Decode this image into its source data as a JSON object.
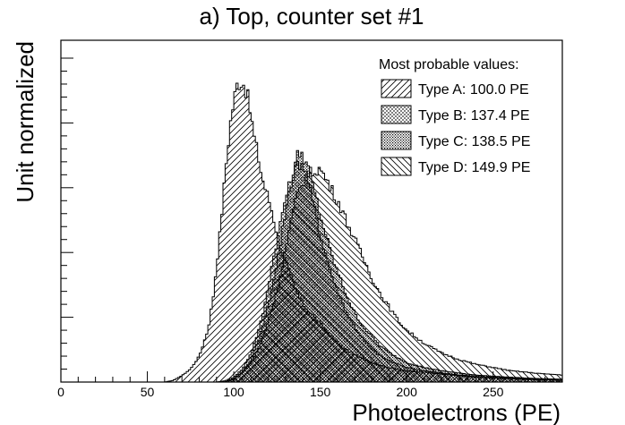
{
  "chart_data": {
    "type": "area",
    "title": "a) Top, counter set #1",
    "xlabel": "Photoelectrons (PE)",
    "ylabel": "Unit normalized",
    "xlim": [
      0,
      290
    ],
    "ylim": [
      0,
      1.0
    ],
    "x_ticks": [
      0,
      50,
      100,
      150,
      200,
      250
    ],
    "grid": false,
    "legend_placement": "top-right",
    "legend_title": "Most probable values:",
    "series": [
      {
        "name": "Type A: 100.0 PE",
        "hatch": "diagonal-right",
        "points": [
          [
            0,
            0
          ],
          [
            60,
            0
          ],
          [
            65,
            0.005
          ],
          [
            70,
            0.02
          ],
          [
            75,
            0.04
          ],
          [
            80,
            0.08
          ],
          [
            85,
            0.16
          ],
          [
            88,
            0.26
          ],
          [
            90,
            0.36
          ],
          [
            92,
            0.46
          ],
          [
            94,
            0.58
          ],
          [
            96,
            0.7
          ],
          [
            98,
            0.8
          ],
          [
            100,
            0.87
          ],
          [
            102,
            0.92
          ],
          [
            104,
            0.93
          ],
          [
            106,
            0.92
          ],
          [
            108,
            0.88
          ],
          [
            110,
            0.82
          ],
          [
            112,
            0.75
          ],
          [
            114,
            0.7
          ],
          [
            116,
            0.64
          ],
          [
            118,
            0.6
          ],
          [
            120,
            0.57
          ],
          [
            122,
            0.53
          ],
          [
            124,
            0.48
          ],
          [
            126,
            0.44
          ],
          [
            128,
            0.4
          ],
          [
            130,
            0.37
          ],
          [
            132,
            0.34
          ],
          [
            134,
            0.31
          ],
          [
            136,
            0.28
          ],
          [
            138,
            0.26
          ],
          [
            140,
            0.24
          ],
          [
            145,
            0.21
          ],
          [
            150,
            0.18
          ],
          [
            155,
            0.15
          ],
          [
            160,
            0.12
          ],
          [
            165,
            0.1
          ],
          [
            170,
            0.085
          ],
          [
            175,
            0.07
          ],
          [
            180,
            0.06
          ],
          [
            185,
            0.05
          ],
          [
            190,
            0.045
          ],
          [
            195,
            0.04
          ],
          [
            200,
            0.035
          ],
          [
            210,
            0.03
          ],
          [
            220,
            0.025
          ],
          [
            230,
            0.02
          ],
          [
            240,
            0.015
          ],
          [
            250,
            0.012
          ],
          [
            260,
            0.01
          ],
          [
            270,
            0.008
          ],
          [
            280,
            0.006
          ],
          [
            290,
            0.005
          ]
        ]
      },
      {
        "name": "Type B: 137.4 PE",
        "hatch": "fine-cross",
        "points": [
          [
            0,
            0
          ],
          [
            90,
            0
          ],
          [
            95,
            0.004
          ],
          [
            100,
            0.015
          ],
          [
            105,
            0.04
          ],
          [
            110,
            0.09
          ],
          [
            115,
            0.17
          ],
          [
            118,
            0.24
          ],
          [
            120,
            0.3
          ],
          [
            122,
            0.36
          ],
          [
            125,
            0.44
          ],
          [
            128,
            0.52
          ],
          [
            130,
            0.57
          ],
          [
            133,
            0.62
          ],
          [
            135,
            0.65
          ],
          [
            137,
            0.67
          ],
          [
            139,
            0.68
          ],
          [
            141,
            0.66
          ],
          [
            143,
            0.62
          ],
          [
            145,
            0.57
          ],
          [
            148,
            0.51
          ],
          [
            150,
            0.45
          ],
          [
            153,
            0.4
          ],
          [
            156,
            0.34
          ],
          [
            160,
            0.28
          ],
          [
            165,
            0.22
          ],
          [
            170,
            0.17
          ],
          [
            175,
            0.13
          ],
          [
            180,
            0.1
          ],
          [
            185,
            0.08
          ],
          [
            190,
            0.065
          ],
          [
            195,
            0.055
          ],
          [
            200,
            0.045
          ],
          [
            210,
            0.035
          ],
          [
            220,
            0.028
          ],
          [
            230,
            0.022
          ],
          [
            240,
            0.018
          ],
          [
            250,
            0.015
          ],
          [
            260,
            0.012
          ],
          [
            270,
            0.01
          ],
          [
            280,
            0.009
          ],
          [
            290,
            0.008
          ]
        ]
      },
      {
        "name": "Type C: 138.5 PE",
        "hatch": "dotted",
        "points": [
          [
            0,
            0
          ],
          [
            95,
            0
          ],
          [
            100,
            0.01
          ],
          [
            105,
            0.03
          ],
          [
            110,
            0.07
          ],
          [
            115,
            0.14
          ],
          [
            120,
            0.24
          ],
          [
            123,
            0.32
          ],
          [
            126,
            0.4
          ],
          [
            129,
            0.5
          ],
          [
            132,
            0.59
          ],
          [
            135,
            0.66
          ],
          [
            137,
            0.7
          ],
          [
            139,
            0.71
          ],
          [
            141,
            0.69
          ],
          [
            143,
            0.66
          ],
          [
            145,
            0.62
          ],
          [
            148,
            0.56
          ],
          [
            150,
            0.51
          ],
          [
            153,
            0.46
          ],
          [
            156,
            0.4
          ],
          [
            160,
            0.34
          ],
          [
            165,
            0.27
          ],
          [
            170,
            0.21
          ],
          [
            175,
            0.17
          ],
          [
            180,
            0.14
          ],
          [
            185,
            0.11
          ],
          [
            190,
            0.09
          ],
          [
            195,
            0.075
          ],
          [
            200,
            0.06
          ],
          [
            210,
            0.045
          ],
          [
            220,
            0.035
          ],
          [
            230,
            0.028
          ],
          [
            240,
            0.022
          ],
          [
            250,
            0.018
          ],
          [
            260,
            0.015
          ],
          [
            270,
            0.012
          ],
          [
            280,
            0.01
          ],
          [
            290,
            0.009
          ]
        ]
      },
      {
        "name": "Type D: 149.9 PE",
        "hatch": "diagonal-left",
        "points": [
          [
            0,
            0
          ],
          [
            95,
            0
          ],
          [
            100,
            0.01
          ],
          [
            105,
            0.03
          ],
          [
            110,
            0.06
          ],
          [
            115,
            0.11
          ],
          [
            120,
            0.19
          ],
          [
            125,
            0.28
          ],
          [
            128,
            0.36
          ],
          [
            131,
            0.44
          ],
          [
            134,
            0.52
          ],
          [
            137,
            0.58
          ],
          [
            140,
            0.62
          ],
          [
            143,
            0.64
          ],
          [
            146,
            0.65
          ],
          [
            149,
            0.66
          ],
          [
            152,
            0.64
          ],
          [
            155,
            0.61
          ],
          [
            158,
            0.58
          ],
          [
            161,
            0.55
          ],
          [
            165,
            0.5
          ],
          [
            170,
            0.44
          ],
          [
            175,
            0.38
          ],
          [
            180,
            0.32
          ],
          [
            185,
            0.27
          ],
          [
            190,
            0.23
          ],
          [
            195,
            0.19
          ],
          [
            200,
            0.16
          ],
          [
            210,
            0.12
          ],
          [
            220,
            0.09
          ],
          [
            230,
            0.07
          ],
          [
            240,
            0.055
          ],
          [
            250,
            0.045
          ],
          [
            260,
            0.035
          ],
          [
            270,
            0.03
          ],
          [
            280,
            0.025
          ],
          [
            290,
            0.022
          ]
        ]
      }
    ]
  }
}
